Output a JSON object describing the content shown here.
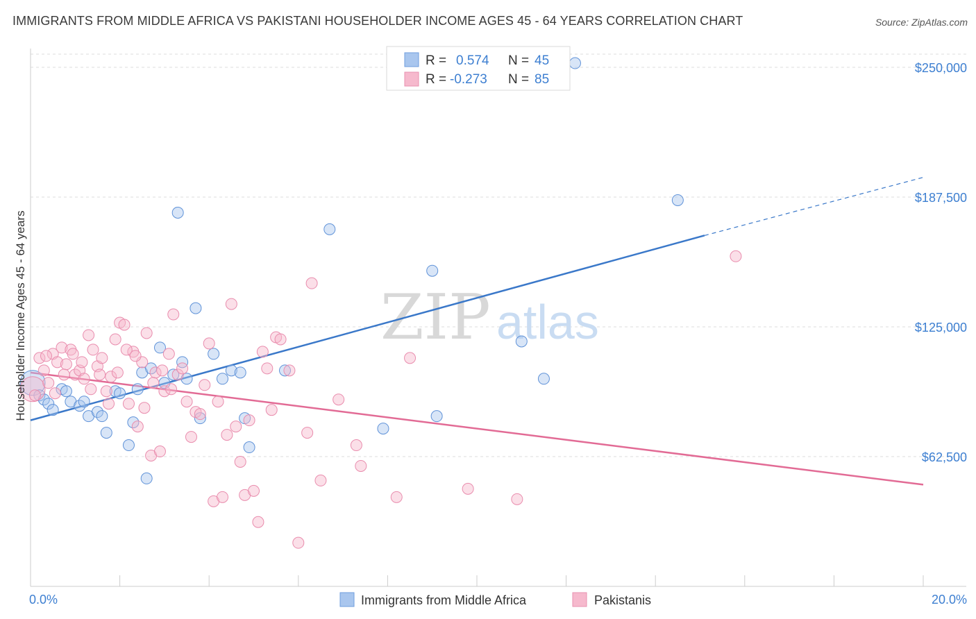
{
  "header": {
    "title": "IMMIGRANTS FROM MIDDLE AFRICA VS PAKISTANI HOUSEHOLDER INCOME AGES 45 - 64 YEARS CORRELATION CHART",
    "source": "Source: ZipAtlas.com"
  },
  "watermark": {
    "zip": "ZIP",
    "atlas": "atlas"
  },
  "legend_top": {
    "rows": [
      {
        "r_label": "R =",
        "r_value": "0.574",
        "n_label": "N =",
        "n_value": "45",
        "color": "#8db4e8"
      },
      {
        "r_label": "R =",
        "r_value": "-0.273",
        "n_label": "N =",
        "n_value": "85",
        "color": "#f2a7c0"
      }
    ]
  },
  "legend_bottom": {
    "items": [
      {
        "label": "Immigrants from Middle Africa",
        "color": "#8db4e8"
      },
      {
        "label": "Pakistanis",
        "color": "#f2a7c0"
      }
    ]
  },
  "chart_data": {
    "type": "scatter",
    "title": "IMMIGRANTS FROM MIDDLE AFRICA VS PAKISTANI HOUSEHOLDER INCOME AGES 45 - 64 YEARS CORRELATION CHART",
    "xlabel": "",
    "ylabel": "Householder Income Ages 45 - 64 years",
    "xlim": [
      0,
      20
    ],
    "ylim": [
      0,
      250000
    ],
    "x_tick_labels": [
      "0.0%",
      "20.0%"
    ],
    "y_ticks": [
      62500,
      125000,
      187500,
      250000
    ],
    "y_tick_labels": [
      "$62,500",
      "$125,000",
      "$187,500",
      "$250,000"
    ],
    "grid": true,
    "legend_position": "top-center",
    "series": [
      {
        "name": "Immigrants from Middle Africa",
        "color": "#3a78c9",
        "fill": "#a9c6ee",
        "points": [
          [
            0.0,
            98000
          ],
          [
            0.2,
            92000
          ],
          [
            0.3,
            90000
          ],
          [
            0.4,
            88000
          ],
          [
            0.5,
            85000
          ],
          [
            0.7,
            95000
          ],
          [
            0.8,
            94000
          ],
          [
            0.9,
            89000
          ],
          [
            1.1,
            87000
          ],
          [
            1.2,
            89000
          ],
          [
            1.3,
            82000
          ],
          [
            1.5,
            84000
          ],
          [
            1.6,
            82000
          ],
          [
            1.7,
            74000
          ],
          [
            1.9,
            94000
          ],
          [
            2.0,
            93000
          ],
          [
            2.2,
            68000
          ],
          [
            2.3,
            79000
          ],
          [
            2.4,
            95000
          ],
          [
            2.5,
            103000
          ],
          [
            2.6,
            52000
          ],
          [
            2.7,
            105000
          ],
          [
            2.9,
            115000
          ],
          [
            3.0,
            98000
          ],
          [
            3.2,
            102000
          ],
          [
            3.3,
            180000
          ],
          [
            3.4,
            108000
          ],
          [
            3.5,
            100000
          ],
          [
            3.7,
            134000
          ],
          [
            3.8,
            81000
          ],
          [
            4.1,
            112000
          ],
          [
            4.3,
            100000
          ],
          [
            4.5,
            104000
          ],
          [
            4.7,
            103000
          ],
          [
            4.8,
            81000
          ],
          [
            4.9,
            67000
          ],
          [
            5.7,
            104000
          ],
          [
            6.7,
            172000
          ],
          [
            7.9,
            76000
          ],
          [
            9.0,
            152000
          ],
          [
            9.1,
            82000
          ],
          [
            11.0,
            118000
          ],
          [
            11.5,
            100000
          ],
          [
            14.5,
            186000
          ],
          [
            12.2,
            252000
          ]
        ],
        "trend": {
          "x": [
            0,
            15.1
          ],
          "y": [
            80000,
            169000
          ],
          "dashed_to": [
            20,
            197000
          ]
        }
      },
      {
        "name": "Pakistanis",
        "color": "#e26b95",
        "fill": "#f6b9cd",
        "points": [
          [
            0.0,
            95000
          ],
          [
            0.1,
            92000
          ],
          [
            0.2,
            110000
          ],
          [
            0.3,
            104000
          ],
          [
            0.4,
            98000
          ],
          [
            0.5,
            112000
          ],
          [
            0.6,
            108000
          ],
          [
            0.7,
            115000
          ],
          [
            0.8,
            107000
          ],
          [
            0.9,
            114000
          ],
          [
            1.0,
            102000
          ],
          [
            1.1,
            104000
          ],
          [
            1.2,
            100000
          ],
          [
            1.3,
            121000
          ],
          [
            1.4,
            114000
          ],
          [
            1.5,
            106000
          ],
          [
            1.6,
            110000
          ],
          [
            1.7,
            94000
          ],
          [
            1.8,
            101000
          ],
          [
            1.9,
            119000
          ],
          [
            2.0,
            127000
          ],
          [
            2.1,
            126000
          ],
          [
            2.2,
            88000
          ],
          [
            2.3,
            113000
          ],
          [
            2.4,
            77000
          ],
          [
            2.5,
            108000
          ],
          [
            2.6,
            122000
          ],
          [
            2.7,
            63000
          ],
          [
            2.8,
            103000
          ],
          [
            2.9,
            65000
          ],
          [
            3.0,
            94000
          ],
          [
            3.1,
            112000
          ],
          [
            3.2,
            131000
          ],
          [
            3.3,
            102000
          ],
          [
            3.4,
            105000
          ],
          [
            3.5,
            89000
          ],
          [
            3.6,
            72000
          ],
          [
            3.7,
            84000
          ],
          [
            3.8,
            83000
          ],
          [
            3.9,
            97000
          ],
          [
            4.0,
            117000
          ],
          [
            4.1,
            41000
          ],
          [
            4.2,
            89000
          ],
          [
            4.3,
            43000
          ],
          [
            4.4,
            73000
          ],
          [
            4.5,
            136000
          ],
          [
            4.6,
            77000
          ],
          [
            4.7,
            60000
          ],
          [
            4.8,
            44000
          ],
          [
            4.9,
            80000
          ],
          [
            5.0,
            46000
          ],
          [
            5.1,
            31000
          ],
          [
            5.2,
            113000
          ],
          [
            5.3,
            105000
          ],
          [
            5.4,
            85000
          ],
          [
            5.5,
            120000
          ],
          [
            5.6,
            119000
          ],
          [
            5.8,
            104000
          ],
          [
            6.0,
            21000
          ],
          [
            6.2,
            74000
          ],
          [
            6.3,
            146000
          ],
          [
            6.5,
            51000
          ],
          [
            6.9,
            90000
          ],
          [
            7.3,
            68000
          ],
          [
            7.4,
            58000
          ],
          [
            8.2,
            43000
          ],
          [
            8.5,
            110000
          ],
          [
            9.8,
            47000
          ],
          [
            10.9,
            42000
          ],
          [
            15.8,
            159000
          ],
          [
            0.35,
            111000
          ],
          [
            0.55,
            93000
          ],
          [
            0.75,
            102000
          ],
          [
            0.95,
            112000
          ],
          [
            1.15,
            108000
          ],
          [
            1.35,
            95000
          ],
          [
            1.55,
            102000
          ],
          [
            1.75,
            88000
          ],
          [
            1.95,
            103000
          ],
          [
            2.15,
            114000
          ],
          [
            2.35,
            111000
          ],
          [
            2.55,
            86000
          ],
          [
            2.75,
            98000
          ],
          [
            2.95,
            104000
          ],
          [
            3.15,
            95000
          ]
        ],
        "trend": {
          "x": [
            0,
            20
          ],
          "y": [
            103000,
            49000
          ]
        }
      }
    ]
  }
}
